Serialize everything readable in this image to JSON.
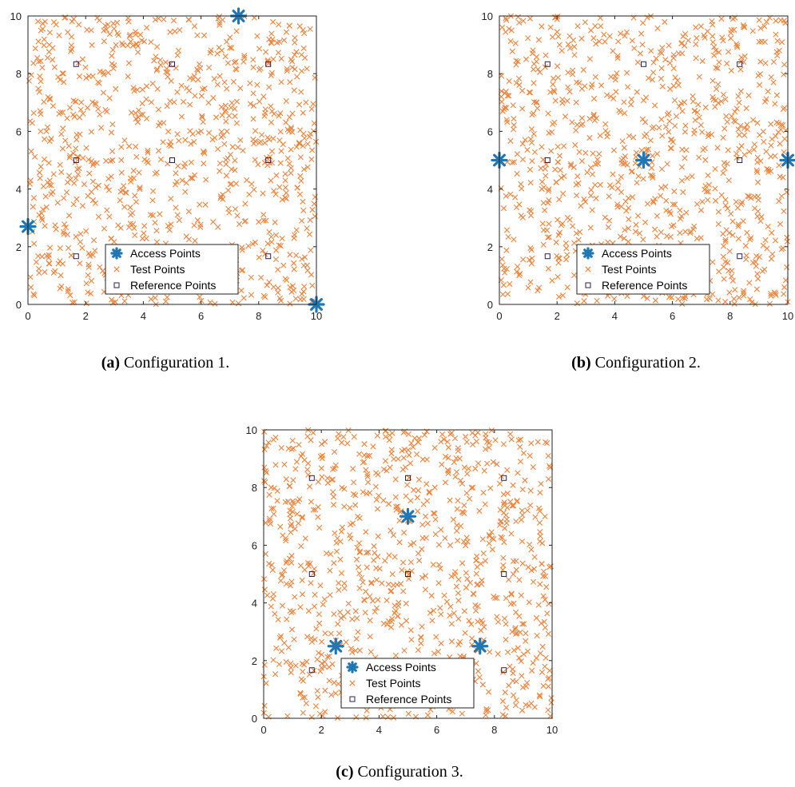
{
  "chart_data": [
    {
      "id": "a",
      "type": "scatter",
      "caption_label": "(a)",
      "caption_text": "Configuration 1.",
      "xlim": [
        0,
        10
      ],
      "ylim": [
        0,
        10
      ],
      "xticks": [
        "0",
        "2",
        "4",
        "6",
        "8",
        "10"
      ],
      "yticks": [
        "0",
        "2",
        "4",
        "6",
        "8",
        "10"
      ],
      "grid": false,
      "legend_position": "bottom-center",
      "legend": [
        "Access Points",
        "Test Points",
        "Reference Points"
      ],
      "access_points": [
        [
          7.3,
          10.0
        ],
        [
          0.0,
          2.7
        ],
        [
          10.0,
          0.0
        ]
      ],
      "reference_points": [
        [
          1.67,
          8.33
        ],
        [
          5.0,
          8.33
        ],
        [
          8.33,
          8.33
        ],
        [
          1.67,
          5.0
        ],
        [
          5.0,
          5.0
        ],
        [
          8.33,
          5.0
        ],
        [
          1.67,
          1.67
        ],
        [
          5.0,
          1.67
        ],
        [
          8.33,
          1.67
        ]
      ],
      "test_points_count": 900
    },
    {
      "id": "b",
      "type": "scatter",
      "caption_label": "(b)",
      "caption_text": "Configuration 2.",
      "xlim": [
        0,
        10
      ],
      "ylim": [
        0,
        10
      ],
      "xticks": [
        "0",
        "2",
        "4",
        "6",
        "8",
        "10"
      ],
      "yticks": [
        "0",
        "2",
        "4",
        "6",
        "8",
        "10"
      ],
      "grid": false,
      "legend_position": "bottom-center",
      "legend": [
        "Access Points",
        "Test Points",
        "Reference Points"
      ],
      "access_points": [
        [
          0.0,
          5.0
        ],
        [
          5.0,
          5.0
        ],
        [
          10.0,
          5.0
        ]
      ],
      "reference_points": [
        [
          1.67,
          8.33
        ],
        [
          5.0,
          8.33
        ],
        [
          8.33,
          8.33
        ],
        [
          1.67,
          5.0
        ],
        [
          5.0,
          5.0
        ],
        [
          8.33,
          5.0
        ],
        [
          1.67,
          1.67
        ],
        [
          5.0,
          1.67
        ],
        [
          8.33,
          1.67
        ]
      ],
      "test_points_count": 900
    },
    {
      "id": "c",
      "type": "scatter",
      "caption_label": "(c)",
      "caption_text": "Configuration 3.",
      "xlim": [
        0,
        10
      ],
      "ylim": [
        0,
        10
      ],
      "xticks": [
        "0",
        "2",
        "4",
        "6",
        "8",
        "10"
      ],
      "yticks": [
        "0",
        "2",
        "4",
        "6",
        "8",
        "10"
      ],
      "grid": false,
      "legend_position": "bottom-center",
      "legend": [
        "Access Points",
        "Test Points",
        "Reference Points"
      ],
      "access_points": [
        [
          5.0,
          7.0
        ],
        [
          2.5,
          2.5
        ],
        [
          7.5,
          2.5
        ]
      ],
      "reference_points": [
        [
          1.67,
          8.33
        ],
        [
          5.0,
          8.33
        ],
        [
          8.33,
          8.33
        ],
        [
          1.67,
          5.0
        ],
        [
          5.0,
          5.0
        ],
        [
          8.33,
          5.0
        ],
        [
          1.67,
          1.67
        ],
        [
          5.0,
          1.67
        ],
        [
          8.33,
          1.67
        ]
      ],
      "test_points_count": 900
    }
  ],
  "colors": {
    "access_point": "#1f77b4",
    "test_point": "#f0833a",
    "reference_point": "#2b1f5c"
  },
  "marker_icons": {
    "access_point": "asterisk-icon",
    "test_point": "x-mark-icon",
    "reference_point": "open-square-icon"
  }
}
